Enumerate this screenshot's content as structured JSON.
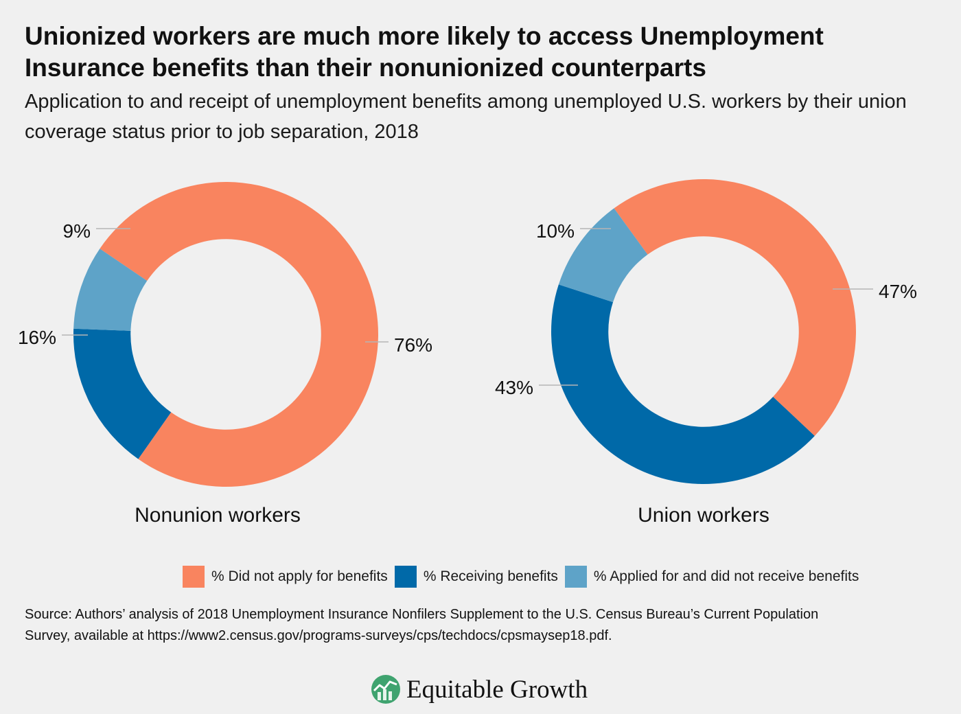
{
  "title": "Unionized workers are much more likely to access Unemployment Insurance benefits than their nonunionized counterparts",
  "subtitle": "Application to and receipt of unemployment benefits among unemployed U.S. workers by their union coverage status prior to job separation, 2018",
  "colors": {
    "did_not_apply": "#f9845f",
    "receiving": "#0069a8",
    "applied_not_received": "#5ea3c8",
    "background": "#f0f0f0"
  },
  "chart_data": [
    {
      "type": "pie",
      "donut": true,
      "title": "Nonunion workers",
      "categories": [
        "% Did not apply for benefits",
        "% Receiving benefits",
        "% Applied for and did not receive benefits"
      ],
      "values": [
        76,
        16,
        9
      ],
      "labels": [
        "76%",
        "16%",
        "9%"
      ]
    },
    {
      "type": "pie",
      "donut": true,
      "title": "Union workers",
      "categories": [
        "% Did not apply for benefits",
        "% Receiving benefits",
        "% Applied for and did not receive benefits"
      ],
      "values": [
        47,
        43,
        10
      ],
      "labels": [
        "47%",
        "43%",
        "10%"
      ]
    }
  ],
  "legend": {
    "placement": "bottom",
    "items": [
      {
        "label": "% Did not apply for benefits",
        "color": "#f9845f"
      },
      {
        "label": "% Receiving benefits",
        "color": "#0069a8"
      },
      {
        "label": "% Applied for and did not receive benefits",
        "color": "#5ea3c8"
      }
    ]
  },
  "source": "Source: Authors’ analysis of 2018 Unemployment Insurance Nonfilers Supplement to the U.S. Census Bureau’s Current Population Survey, available at https://www2.census.gov/programs-surveys/cps/techdocs/cpsmaysep18.pdf.",
  "brand": {
    "name": "Equitable Growth",
    "logo_icon": "equitable-growth-logo-icon"
  }
}
